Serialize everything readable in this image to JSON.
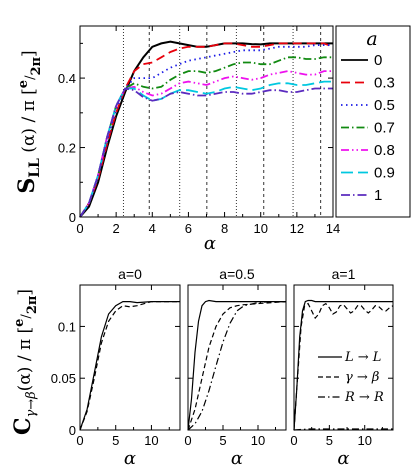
{
  "chart_data": [
    {
      "type": "line",
      "title": "",
      "xlabel": "α",
      "ylabel_main": "S",
      "ylabel_sub": "LL",
      "ylabel_rest": " (α) / π ",
      "ylabel_bracket_num": "e",
      "ylabel_bracket_den": "2π",
      "xlim": [
        0,
        14
      ],
      "ylim": [
        0,
        0.55
      ],
      "xticks": [
        "0",
        "2",
        "4",
        "6",
        "8",
        "10",
        "12",
        "14"
      ],
      "xtick_values": [
        0,
        2,
        4,
        6,
        8,
        10,
        12,
        14
      ],
      "yticks": [
        "0",
        "0.2",
        "0.4"
      ],
      "ytick_values": [
        0,
        0.2,
        0.4
      ],
      "vlines": [
        2.4,
        3.83,
        5.52,
        7.02,
        8.65,
        10.17,
        11.79,
        13.32
      ],
      "legend": {
        "title": "a",
        "placement": "right"
      },
      "series": [
        {
          "name": "0",
          "color": "#000000",
          "dash": "",
          "x": [
            0,
            0.5,
            1,
            1.5,
            2,
            2.5,
            3,
            3.5,
            4,
            4.5,
            5,
            5.5,
            6,
            6.5,
            7,
            7.5,
            8,
            8.5,
            9,
            9.5,
            10,
            10.5,
            11,
            11.5,
            12,
            12.5,
            13,
            13.5,
            14
          ],
          "y": [
            0,
            0.03,
            0.1,
            0.2,
            0.29,
            0.36,
            0.42,
            0.46,
            0.49,
            0.5,
            0.505,
            0.5,
            0.495,
            0.49,
            0.49,
            0.495,
            0.5,
            0.5,
            0.5,
            0.498,
            0.497,
            0.5,
            0.5,
            0.5,
            0.5,
            0.5,
            0.5,
            0.5,
            0.5
          ]
        },
        {
          "name": "0.3",
          "color": "#e8000b",
          "dash": "9,5",
          "x": [
            0,
            0.5,
            1,
            1.5,
            2,
            2.5,
            3,
            3.5,
            4,
            4.5,
            5,
            5.5,
            6,
            6.5,
            7,
            7.5,
            8,
            8.5,
            9,
            9.5,
            10,
            10.5,
            11,
            11.5,
            12,
            12.5,
            13,
            13.5,
            14
          ],
          "y": [
            0,
            0.04,
            0.11,
            0.21,
            0.3,
            0.37,
            0.42,
            0.44,
            0.445,
            0.46,
            0.475,
            0.485,
            0.49,
            0.49,
            0.49,
            0.495,
            0.5,
            0.5,
            0.495,
            0.49,
            0.49,
            0.495,
            0.5,
            0.5,
            0.5,
            0.5,
            0.5,
            0.5,
            0.49
          ]
        },
        {
          "name": "0.5",
          "color": "#1a1ae6",
          "dash": "1.5,3.5",
          "x": [
            0,
            0.5,
            1,
            1.5,
            2,
            2.5,
            3,
            3.5,
            4,
            4.5,
            5,
            5.5,
            6,
            6.5,
            7,
            7.5,
            8,
            8.5,
            9,
            9.5,
            10,
            10.5,
            11,
            11.5,
            12,
            12.5,
            13,
            13.5,
            14
          ],
          "y": [
            0,
            0.04,
            0.12,
            0.22,
            0.31,
            0.37,
            0.4,
            0.4,
            0.4,
            0.415,
            0.43,
            0.44,
            0.45,
            0.455,
            0.46,
            0.465,
            0.47,
            0.475,
            0.48,
            0.48,
            0.48,
            0.485,
            0.49,
            0.49,
            0.49,
            0.49,
            0.495,
            0.495,
            0.495
          ]
        },
        {
          "name": "0.7",
          "color": "#118a11",
          "dash": "8,3,1.5,3",
          "x": [
            0,
            0.5,
            1,
            1.5,
            2,
            2.5,
            3,
            3.5,
            4,
            4.5,
            5,
            5.5,
            6,
            6.5,
            7,
            7.5,
            8,
            8.5,
            9,
            9.5,
            10,
            10.5,
            11,
            11.5,
            12,
            12.5,
            13,
            13.5,
            14
          ],
          "y": [
            0,
            0.04,
            0.12,
            0.23,
            0.32,
            0.37,
            0.385,
            0.375,
            0.37,
            0.375,
            0.395,
            0.41,
            0.42,
            0.42,
            0.415,
            0.42,
            0.43,
            0.44,
            0.445,
            0.445,
            0.44,
            0.44,
            0.45,
            0.46,
            0.46,
            0.455,
            0.455,
            0.46,
            0.46
          ]
        },
        {
          "name": "0.8",
          "color": "#ee11ee",
          "dash": "8,3,1.5,3,1.5,3",
          "x": [
            0,
            0.5,
            1,
            1.5,
            2,
            2.5,
            3,
            3.5,
            4,
            4.5,
            5,
            5.5,
            6,
            6.5,
            7,
            7.5,
            8,
            8.5,
            9,
            9.5,
            10,
            10.5,
            11,
            11.5,
            12,
            12.5,
            13,
            13.5,
            14
          ],
          "y": [
            0,
            0.04,
            0.12,
            0.23,
            0.32,
            0.37,
            0.375,
            0.36,
            0.35,
            0.355,
            0.37,
            0.385,
            0.39,
            0.385,
            0.38,
            0.39,
            0.4,
            0.405,
            0.4,
            0.395,
            0.4,
            0.41,
            0.415,
            0.42,
            0.415,
            0.41,
            0.41,
            0.42,
            0.42
          ]
        },
        {
          "name": "0.9",
          "color": "#00c8e0",
          "dash": "12,5",
          "x": [
            0,
            0.5,
            1,
            1.5,
            2,
            2.5,
            3,
            3.5,
            4,
            4.5,
            5,
            5.5,
            6,
            6.5,
            7,
            7.5,
            8,
            8.5,
            9,
            9.5,
            10,
            10.5,
            11,
            11.5,
            12,
            12.5,
            13,
            13.5,
            14
          ],
          "y": [
            0,
            0.04,
            0.12,
            0.23,
            0.32,
            0.37,
            0.37,
            0.35,
            0.335,
            0.34,
            0.355,
            0.365,
            0.365,
            0.36,
            0.355,
            0.36,
            0.37,
            0.375,
            0.37,
            0.365,
            0.37,
            0.38,
            0.385,
            0.385,
            0.38,
            0.38,
            0.385,
            0.39,
            0.39
          ]
        },
        {
          "name": "1",
          "color": "#5b2bbf",
          "dash": "9,3,1.5,3",
          "x": [
            0,
            0.5,
            1,
            1.5,
            2,
            2.5,
            3,
            3.5,
            4,
            4.5,
            5,
            5.5,
            6,
            6.5,
            7,
            7.5,
            8,
            8.5,
            9,
            9.5,
            10,
            10.5,
            11,
            11.5,
            12,
            12.5,
            13,
            13.5,
            14
          ],
          "y": [
            0,
            0.04,
            0.12,
            0.23,
            0.32,
            0.37,
            0.365,
            0.345,
            0.335,
            0.34,
            0.355,
            0.36,
            0.355,
            0.35,
            0.35,
            0.355,
            0.36,
            0.36,
            0.355,
            0.355,
            0.36,
            0.365,
            0.365,
            0.36,
            0.36,
            0.365,
            0.37,
            0.37,
            0.37
          ]
        }
      ]
    },
    {
      "type": "line",
      "ylabel_main": "C",
      "ylabel_sub": "γ→β",
      "ylabel_rest": "(α) / π ",
      "ylabel_bracket_num": "e",
      "ylabel_bracket_den": "2π",
      "xlabel": "α",
      "ylim": [
        0,
        0.14
      ],
      "yticks": [
        "0",
        "0.05",
        "0.1"
      ],
      "ytick_values": [
        0,
        0.05,
        0.1
      ],
      "panels": [
        {
          "title": "a=0",
          "xlim": [
            0,
            14
          ],
          "xticks": [
            "0",
            "5",
            "10"
          ],
          "xtick_values": [
            0,
            5,
            10
          ],
          "series": [
            {
              "name": "L → L",
              "dash": "",
              "x": [
                0,
                1,
                2,
                3,
                4,
                5,
                6,
                7,
                8,
                10,
                12,
                14
              ],
              "y": [
                0,
                0.02,
                0.055,
                0.09,
                0.112,
                0.12,
                0.124,
                0.124,
                0.123,
                0.124,
                0.124,
                0.124
              ]
            },
            {
              "name": "γ → β",
              "dash": "5,3",
              "x": [
                0,
                1,
                2,
                3,
                4,
                5,
                6,
                7,
                8,
                10,
                12,
                14
              ],
              "y": [
                0,
                0.018,
                0.05,
                0.084,
                0.105,
                0.115,
                0.12,
                0.119,
                0.12,
                0.124,
                0.124,
                0.124
              ]
            }
          ]
        },
        {
          "title": "a=0.5",
          "xlim": [
            0,
            14
          ],
          "xticks": [
            "0",
            "5",
            "10"
          ],
          "xtick_values": [
            0,
            5,
            10
          ],
          "series": [
            {
              "name": "L → L",
              "dash": "",
              "x": [
                0,
                0.5,
                1,
                1.5,
                2,
                2.5,
                3,
                4,
                5,
                6,
                8,
                10,
                12,
                14
              ],
              "y": [
                0,
                0.03,
                0.075,
                0.105,
                0.12,
                0.124,
                0.125,
                0.124,
                0.124,
                0.124,
                0.124,
                0.124,
                0.124,
                0.124
              ]
            },
            {
              "name": "γ → β",
              "dash": "5,3",
              "x": [
                0,
                1,
                2,
                3,
                4,
                5,
                6,
                7,
                8,
                10,
                12,
                14
              ],
              "y": [
                0,
                0.02,
                0.05,
                0.08,
                0.1,
                0.112,
                0.118,
                0.12,
                0.121,
                0.122,
                0.123,
                0.124
              ]
            },
            {
              "name": "R → R",
              "dash": "7,3,1.5,3",
              "x": [
                0,
                1,
                2,
                3,
                4,
                5,
                6,
                7,
                8,
                10,
                12,
                14
              ],
              "y": [
                0,
                0.006,
                0.018,
                0.038,
                0.062,
                0.085,
                0.103,
                0.115,
                0.12,
                0.123,
                0.124,
                0.124
              ]
            }
          ]
        },
        {
          "title": "a=1",
          "xlim": [
            0,
            14
          ],
          "xticks": [
            "0",
            "5",
            "10"
          ],
          "xtick_values": [
            0,
            5,
            10
          ],
          "series": [
            {
              "name": "L → L",
              "dash": "",
              "x": [
                0,
                0.4,
                0.8,
                1.2,
                1.6,
                2,
                2.5,
                3,
                4,
                5,
                6,
                8,
                10,
                12,
                14
              ],
              "y": [
                0,
                0.04,
                0.09,
                0.115,
                0.124,
                0.125,
                0.125,
                0.124,
                0.124,
                0.124,
                0.124,
                0.124,
                0.124,
                0.124,
                0.124
              ]
            },
            {
              "name": "γ → β",
              "dash": "5,3",
              "x": [
                0,
                0.5,
                1,
                1.5,
                2,
                2.5,
                3,
                3.5,
                4,
                4.5,
                5,
                5.5,
                6,
                6.5,
                7,
                7.5,
                8,
                8.5,
                9,
                9.5,
                10,
                10.5,
                11,
                11.5,
                12,
                12.5,
                13,
                13.5,
                14
              ],
              "y": [
                0,
                0.05,
                0.1,
                0.12,
                0.122,
                0.115,
                0.108,
                0.112,
                0.12,
                0.122,
                0.118,
                0.112,
                0.114,
                0.12,
                0.121,
                0.117,
                0.113,
                0.115,
                0.12,
                0.12,
                0.116,
                0.113,
                0.116,
                0.12,
                0.119,
                0.116,
                0.115,
                0.118,
                0.12
              ]
            },
            {
              "name": "R → R",
              "dash": "7,3,1.5,3",
              "x": [
                0,
                2,
                4,
                6,
                8,
                10,
                12,
                14
              ],
              "y": [
                0,
                0.001,
                0.001,
                0.001,
                0.001,
                0.001,
                0.001,
                0.001
              ]
            }
          ]
        }
      ]
    }
  ]
}
